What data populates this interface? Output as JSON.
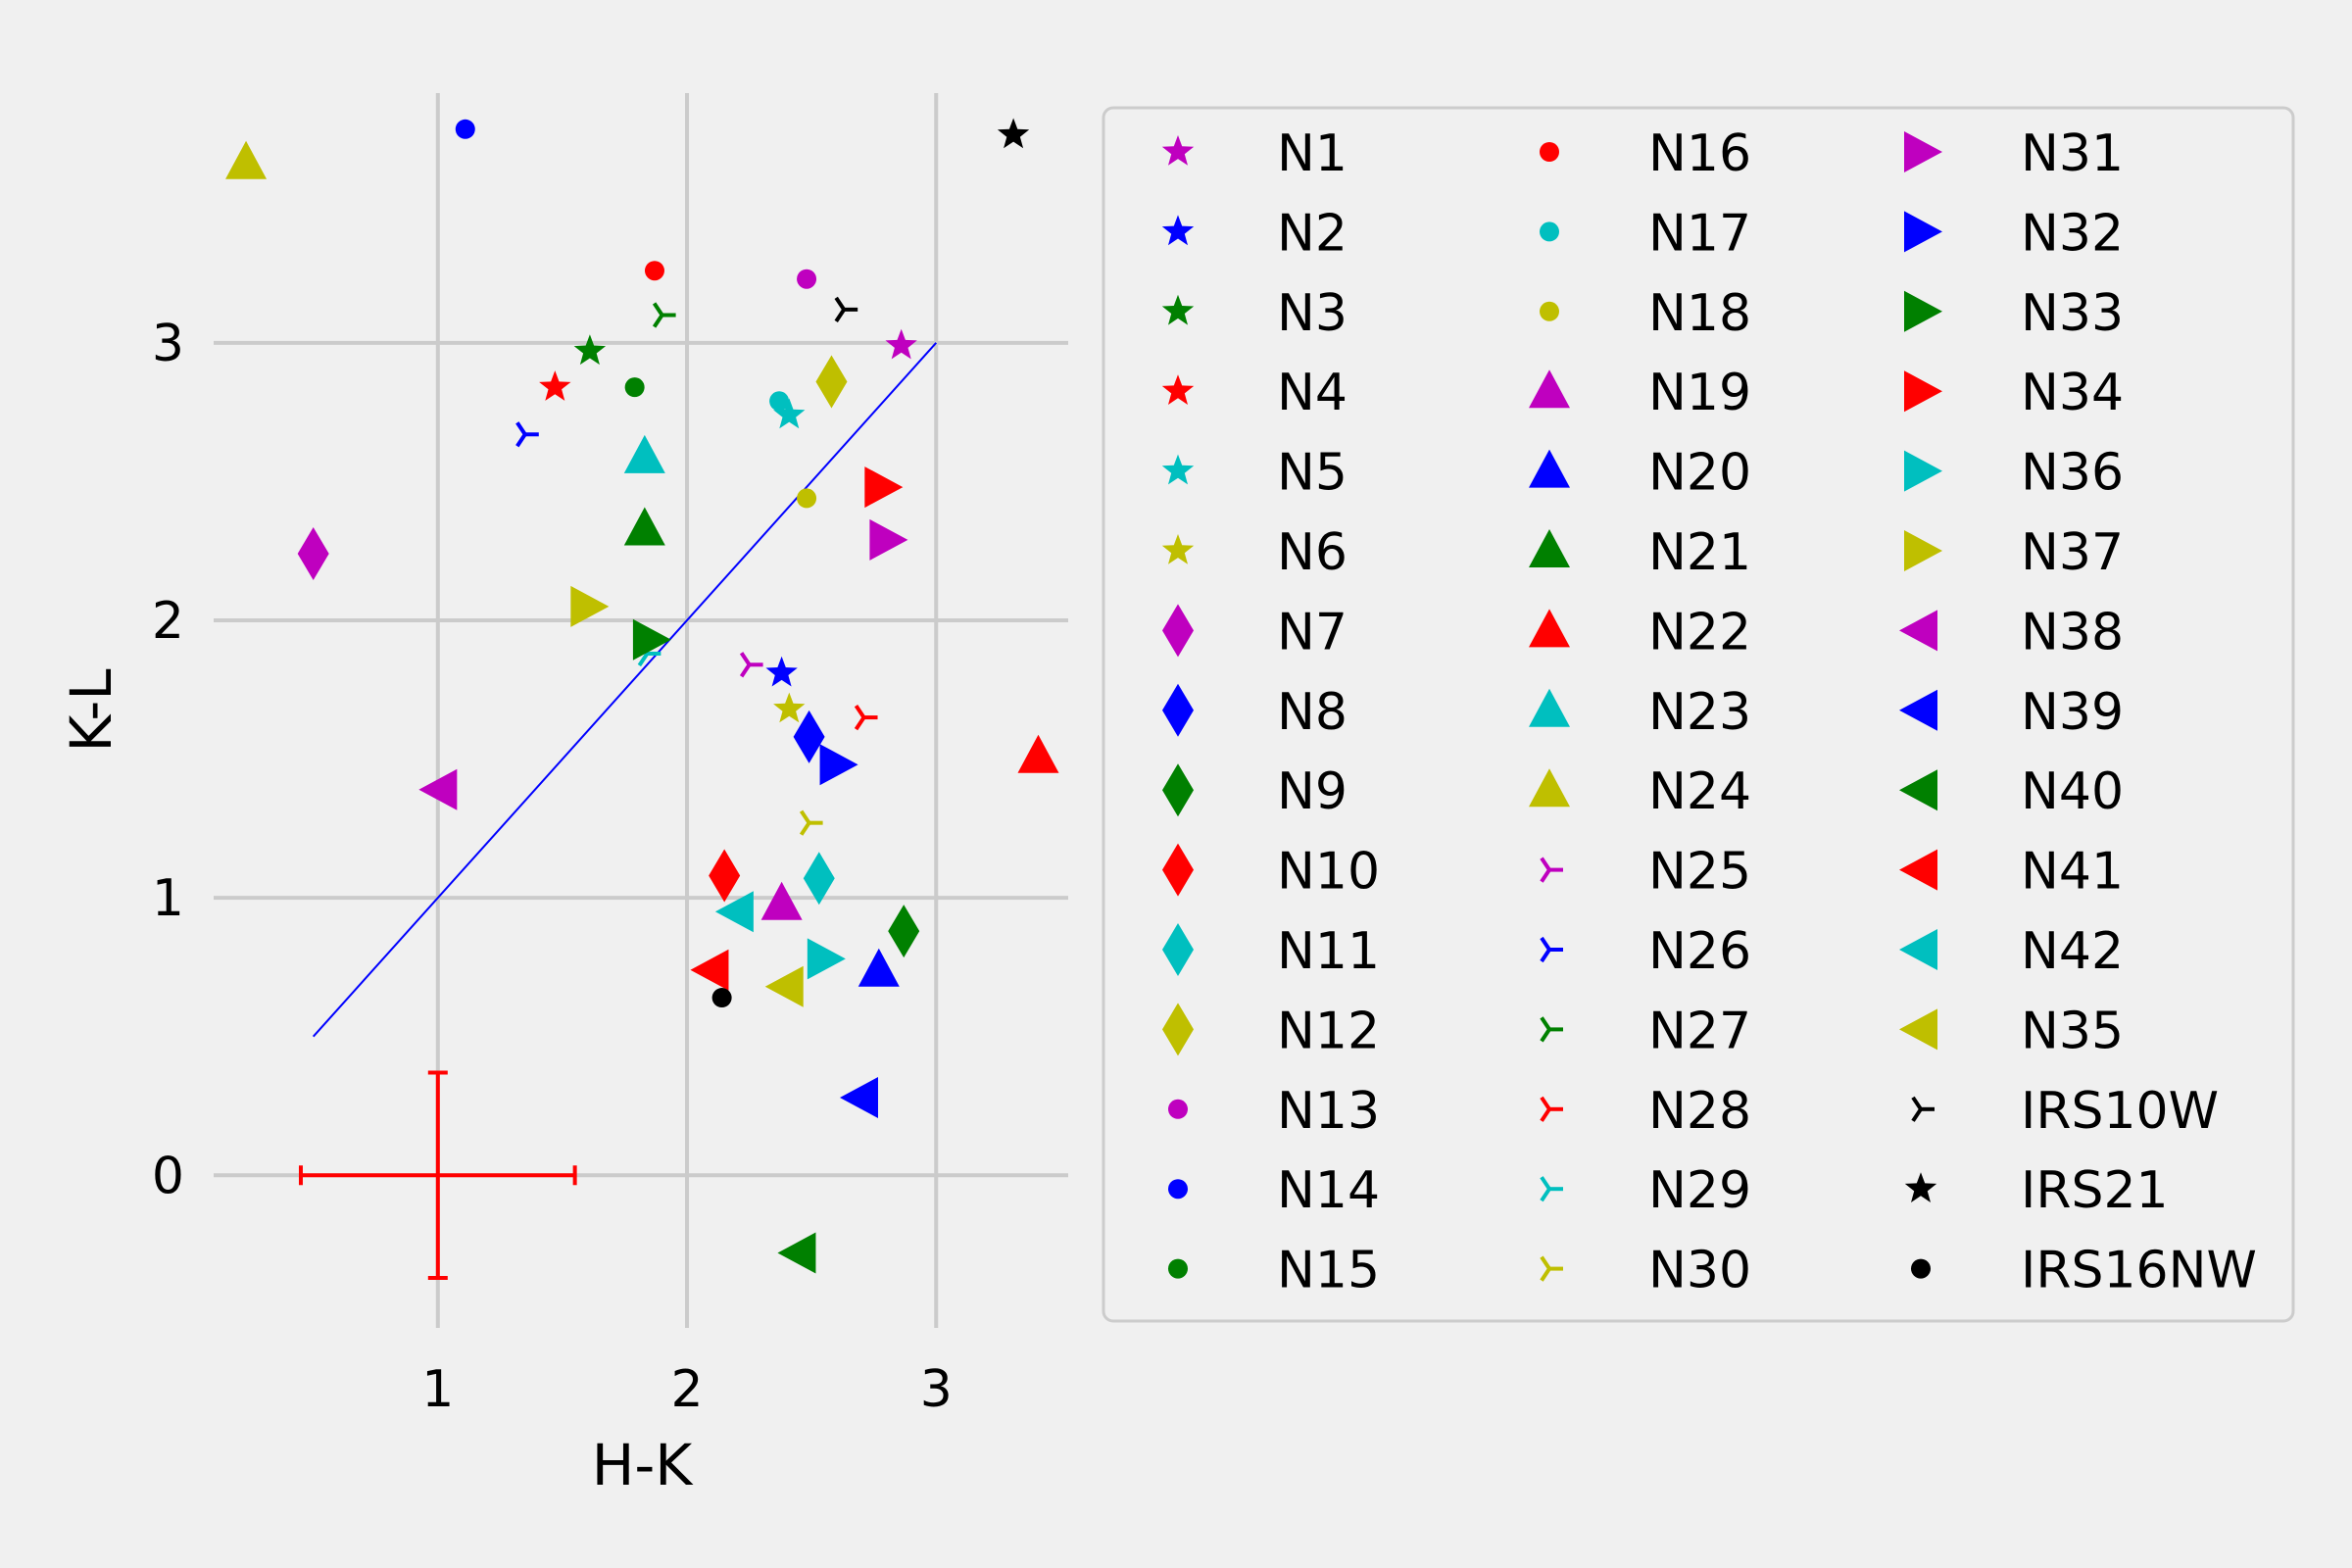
{
  "chart_data": {
    "type": "scatter",
    "xlabel": "H-K",
    "ylabel": "K-L",
    "xlim": [
      0.1,
      3.53
    ],
    "ylim": [
      -0.55,
      3.9
    ],
    "xticks": [
      "1",
      "2",
      "3"
    ],
    "yticks": [
      "0",
      "1",
      "2",
      "3"
    ],
    "grid": true,
    "legend_placement": "right",
    "legend_columns": 3,
    "reference_line": {
      "x": [
        0.5,
        3.0
      ],
      "y": [
        0.5,
        3.0
      ],
      "color": "#0000ff"
    },
    "error_bar": {
      "x": 1.0,
      "y": 0.0,
      "xerr_minus": 0.55,
      "xerr_plus": 0.55,
      "yerr": 0.37,
      "color": "#ff0000"
    },
    "series": [
      {
        "name": "N1",
        "marker": "star",
        "color": "#bf00bf",
        "x": 2.86,
        "y": 2.99
      },
      {
        "name": "N2",
        "marker": "star",
        "color": "#0000ff",
        "x": 2.38,
        "y": 1.81
      },
      {
        "name": "N3",
        "marker": "star",
        "color": "#008000",
        "x": 1.61,
        "y": 2.97
      },
      {
        "name": "N4",
        "marker": "star",
        "color": "#ff0000",
        "x": 1.47,
        "y": 2.84
      },
      {
        "name": "N5",
        "marker": "star",
        "color": "#00bfbf",
        "x": 2.41,
        "y": 2.74
      },
      {
        "name": "N6",
        "marker": "star",
        "color": "#bfbf00",
        "x": 2.41,
        "y": 1.68
      },
      {
        "name": "N7",
        "marker": "diamond",
        "color": "#bf00bf",
        "x": 0.5,
        "y": 2.24
      },
      {
        "name": "N8",
        "marker": "diamond",
        "color": "#0000ff",
        "x": 2.49,
        "y": 1.58
      },
      {
        "name": "N9",
        "marker": "diamond",
        "color": "#008000",
        "x": 2.87,
        "y": 0.88
      },
      {
        "name": "N10",
        "marker": "diamond",
        "color": "#ff0000",
        "x": 2.15,
        "y": 1.08
      },
      {
        "name": "N11",
        "marker": "diamond",
        "color": "#00bfbf",
        "x": 2.53,
        "y": 1.07
      },
      {
        "name": "N12",
        "marker": "diamond",
        "color": "#bfbf00",
        "x": 2.58,
        "y": 2.86
      },
      {
        "name": "N13",
        "marker": "circle",
        "color": "#bf00bf",
        "x": 2.48,
        "y": 3.23
      },
      {
        "name": "N14",
        "marker": "circle",
        "color": "#0000ff",
        "x": 1.11,
        "y": 3.77
      },
      {
        "name": "N15",
        "marker": "circle",
        "color": "#008000",
        "x": 1.79,
        "y": 2.84
      },
      {
        "name": "N16",
        "marker": "circle",
        "color": "#ff0000",
        "x": 1.87,
        "y": 3.26
      },
      {
        "name": "N17",
        "marker": "circle",
        "color": "#00bfbf",
        "x": 2.37,
        "y": 2.79
      },
      {
        "name": "N18",
        "marker": "circle",
        "color": "#bfbf00",
        "x": 2.48,
        "y": 2.44
      },
      {
        "name": "N19",
        "marker": "triangle-up",
        "color": "#bf00bf",
        "x": 2.38,
        "y": 0.98
      },
      {
        "name": "N20",
        "marker": "triangle-up",
        "color": "#0000ff",
        "x": 2.77,
        "y": 0.74
      },
      {
        "name": "N21",
        "marker": "triangle-up",
        "color": "#008000",
        "x": 1.83,
        "y": 2.33
      },
      {
        "name": "N22",
        "marker": "triangle-up",
        "color": "#ff0000",
        "x": 3.41,
        "y": 1.51
      },
      {
        "name": "N23",
        "marker": "triangle-up",
        "color": "#00bfbf",
        "x": 1.83,
        "y": 2.59
      },
      {
        "name": "N24",
        "marker": "triangle-up",
        "color": "#bfbf00",
        "x": 0.23,
        "y": 3.65
      },
      {
        "name": "N25",
        "marker": "tri-right",
        "color": "#bf00bf",
        "x": 2.25,
        "y": 1.84
      },
      {
        "name": "N26",
        "marker": "tri-right",
        "color": "#0000ff",
        "x": 1.35,
        "y": 2.67
      },
      {
        "name": "N27",
        "marker": "tri-right",
        "color": "#008000",
        "x": 1.9,
        "y": 3.1
      },
      {
        "name": "N28",
        "marker": "tri-right",
        "color": "#ff0000",
        "x": 2.71,
        "y": 1.65
      },
      {
        "name": "N29",
        "marker": "tri-right",
        "color": "#00bfbf",
        "x": 1.84,
        "y": 1.88
      },
      {
        "name": "N30",
        "marker": "tri-right",
        "color": "#bfbf00",
        "x": 2.49,
        "y": 1.27
      },
      {
        "name": "N31",
        "marker": "triangle-right",
        "color": "#bf00bf",
        "x": 2.8,
        "y": 2.29
      },
      {
        "name": "N32",
        "marker": "triangle-right",
        "color": "#0000ff",
        "x": 2.6,
        "y": 1.48
      },
      {
        "name": "N33",
        "marker": "triangle-right",
        "color": "#008000",
        "x": 1.85,
        "y": 1.93
      },
      {
        "name": "N34",
        "marker": "triangle-right",
        "color": "#ff0000",
        "x": 2.78,
        "y": 2.48
      },
      {
        "name": "N36",
        "marker": "triangle-right",
        "color": "#00bfbf",
        "x": 2.55,
        "y": 0.78
      },
      {
        "name": "N37",
        "marker": "triangle-right",
        "color": "#bfbf00",
        "x": 1.6,
        "y": 2.05
      },
      {
        "name": "N38",
        "marker": "triangle-left",
        "color": "#bf00bf",
        "x": 1.01,
        "y": 1.39
      },
      {
        "name": "N39",
        "marker": "triangle-left",
        "color": "#0000ff",
        "x": 2.7,
        "y": 0.28
      },
      {
        "name": "N40",
        "marker": "triangle-left",
        "color": "#008000",
        "x": 2.45,
        "y": -0.28
      },
      {
        "name": "N41",
        "marker": "triangle-left",
        "color": "#ff0000",
        "x": 2.1,
        "y": 0.74
      },
      {
        "name": "N42",
        "marker": "triangle-left",
        "color": "#00bfbf",
        "x": 2.2,
        "y": 0.95
      },
      {
        "name": "N35",
        "marker": "triangle-left",
        "color": "#bfbf00",
        "x": 2.4,
        "y": 0.68
      },
      {
        "name": "IRS10W",
        "marker": "tri-right",
        "color": "#000000",
        "x": 2.63,
        "y": 3.12
      },
      {
        "name": "IRS21",
        "marker": "star",
        "color": "#000000",
        "x": 3.31,
        "y": 3.75
      },
      {
        "name": "IRS16NW",
        "marker": "circle",
        "color": "#000000",
        "x": 2.14,
        "y": 0.64
      }
    ]
  }
}
